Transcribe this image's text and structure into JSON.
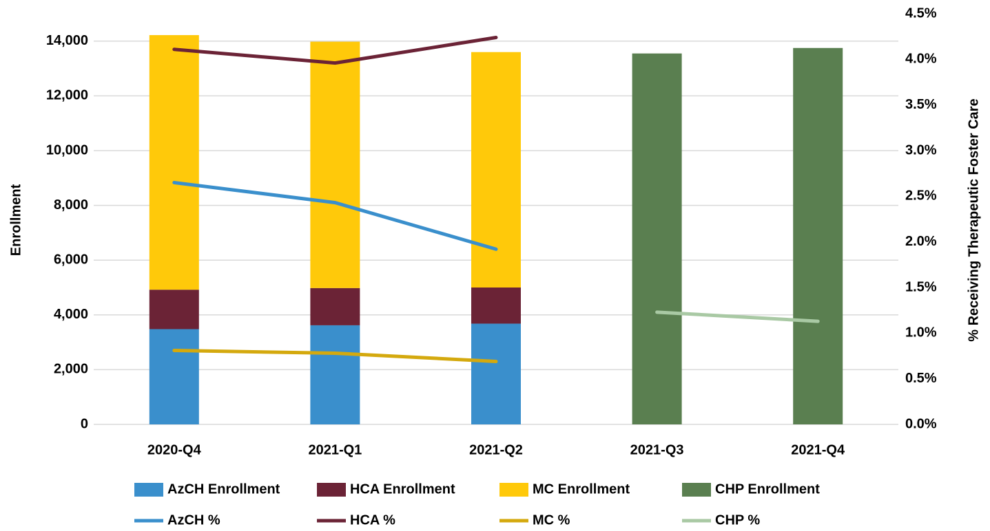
{
  "chart_data": {
    "type": "bar",
    "categories": [
      "2020-Q4",
      "2021-Q1",
      "2021-Q2",
      "2021-Q3",
      "2021-Q4"
    ],
    "ylabel": "Enrollment",
    "y2label": "% Receiving Therapeutic Foster Care",
    "ylim": [
      0,
      15000
    ],
    "yticks": [
      0,
      {
        "value": 2000,
        "label": "2,000"
      },
      {
        "value": 4000,
        "label": "4,000"
      },
      {
        "value": 6000,
        "label": "6,000"
      },
      {
        "value": 8000,
        "label": "8,000"
      },
      {
        "value": 10000,
        "label": "10,000"
      },
      {
        "value": 12000,
        "label": "12,000"
      },
      {
        "value": 14000,
        "label": "14,000"
      }
    ],
    "y2lim": [
      0,
      4.5
    ],
    "y2ticks": [
      {
        "value": 0,
        "label": "0.0%"
      },
      {
        "value": 0.5,
        "label": "0.5%"
      },
      {
        "value": 1,
        "label": "1.0%"
      },
      {
        "value": 1.5,
        "label": "1.5%"
      },
      {
        "value": 2,
        "label": "2.0%"
      },
      {
        "value": 2.5,
        "label": "2.5%"
      },
      {
        "value": 3,
        "label": "3.0%"
      },
      {
        "value": 3.5,
        "label": "3.5%"
      },
      {
        "value": 4,
        "label": "4.0%"
      },
      {
        "value": 4.5,
        "label": "4.5%"
      }
    ],
    "grid": true,
    "legend": "bottom",
    "series": [
      {
        "name": "AzCH Enrollment",
        "type": "bar",
        "color": "#3a8fcc",
        "values": [
          3480,
          3620,
          3680,
          null,
          null
        ]
      },
      {
        "name": "HCA Enrollment",
        "type": "bar",
        "color": "#6b2336",
        "values": [
          1440,
          1360,
          1320,
          null,
          null
        ]
      },
      {
        "name": "MC Enrollment",
        "type": "bar",
        "color": "#ffc90a",
        "values": [
          9300,
          9000,
          8600,
          null,
          null
        ]
      },
      {
        "name": "CHP Enrollment",
        "type": "bar",
        "color": "#5a7f50",
        "values": [
          null,
          null,
          null,
          13550,
          13750
        ]
      },
      {
        "name": "AzCH %",
        "type": "line",
        "axis": "y2",
        "color": "#3a8fcc",
        "values": [
          2.65,
          2.43,
          1.92,
          null,
          null
        ]
      },
      {
        "name": "HCA %",
        "type": "line",
        "axis": "y2",
        "color": "#6b2336",
        "values": [
          4.11,
          3.96,
          4.24,
          null,
          null
        ]
      },
      {
        "name": "MC %",
        "type": "line",
        "axis": "y2",
        "color": "#d4a90e",
        "values": [
          0.81,
          0.78,
          0.69,
          null,
          null
        ]
      },
      {
        "name": "CHP %",
        "type": "line",
        "axis": "y2",
        "color": "#a9c9a4",
        "values": [
          null,
          null,
          null,
          1.23,
          1.13
        ]
      }
    ]
  }
}
